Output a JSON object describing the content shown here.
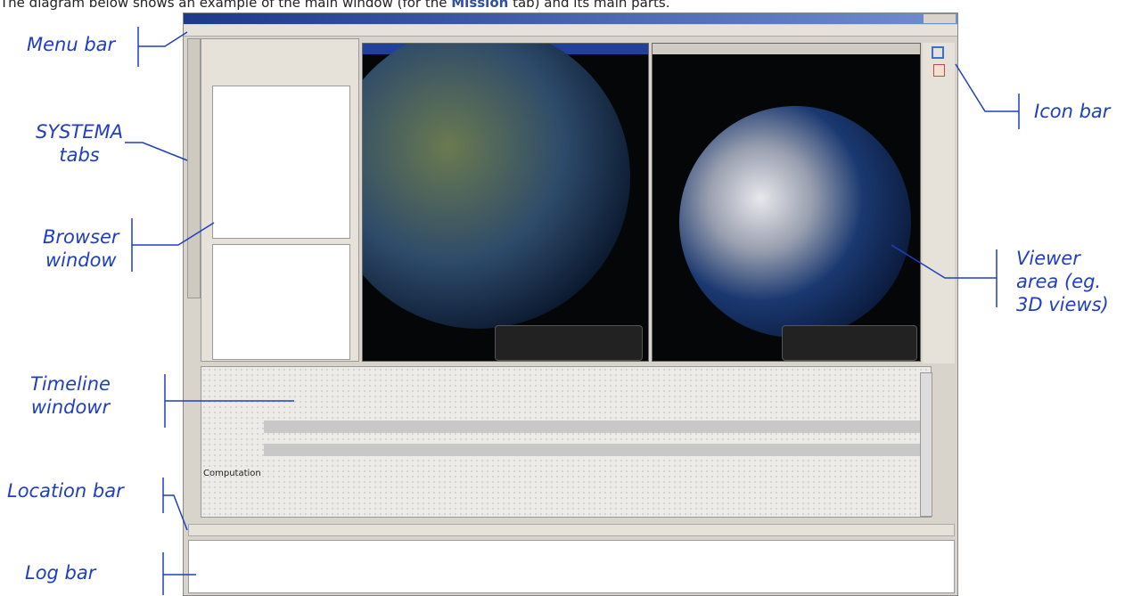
{
  "caption": {
    "before": "The diagram below shows an example of the main window (for the ",
    "bold": "Mission",
    "after": " tab) and its main parts."
  },
  "annotations": [
    {
      "lines": [
        "Menu bar"
      ]
    },
    {
      "lines": [
        "SYSTEMA",
        "tabs"
      ]
    },
    {
      "lines": [
        "Browser",
        "window"
      ]
    },
    {
      "lines": [
        "Timeline",
        "windowr"
      ]
    },
    {
      "lines": [
        "Location bar"
      ]
    },
    {
      "lines": [
        "Log bar"
      ]
    },
    {
      "lines": [
        "Icon bar"
      ]
    },
    {
      "lines": [
        "Viewer",
        "area (eg.",
        "3D views)"
      ]
    }
  ],
  "timeline": {
    "rows": [
      "Computation"
    ]
  }
}
